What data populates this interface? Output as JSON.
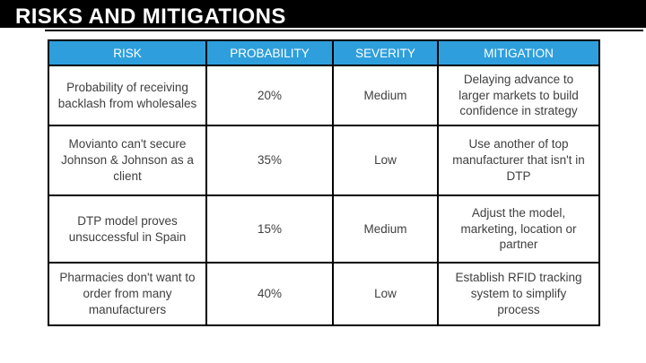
{
  "slide": {
    "title": "RISKS AND MITIGATIONS"
  },
  "colors": {
    "page_bg": "#ffffff",
    "bar_bg": "#000000",
    "title_text": "#ffffff",
    "header_bg": "#2e9fdc",
    "header_text": "#ffffff",
    "border": "#000000",
    "cell_text": "#3f3f3f"
  },
  "table": {
    "columns": [
      "RISK",
      "PROBABILITY",
      "SEVERITY",
      "MITIGATION"
    ],
    "rows": [
      {
        "risk": "Probability of receiving backlash from wholesales",
        "probability": "20%",
        "severity": "Medium",
        "mitigation": "Delaying advance to larger markets to build confidence in strategy"
      },
      {
        "risk": "Movianto can't secure Johnson & Johnson as a client",
        "probability": "35%",
        "severity": "Low",
        "mitigation": "Use another of top manufacturer that isn't in DTP"
      },
      {
        "risk": "DTP model proves unsuccessful in Spain",
        "probability": "15%",
        "severity": "Medium",
        "mitigation": "Adjust the model, marketing, location or partner"
      },
      {
        "risk": "Pharmacies don't want to order from many manufacturers",
        "probability": "40%",
        "severity": "Low",
        "mitigation": "Establish RFID tracking system to simplify process"
      }
    ]
  }
}
